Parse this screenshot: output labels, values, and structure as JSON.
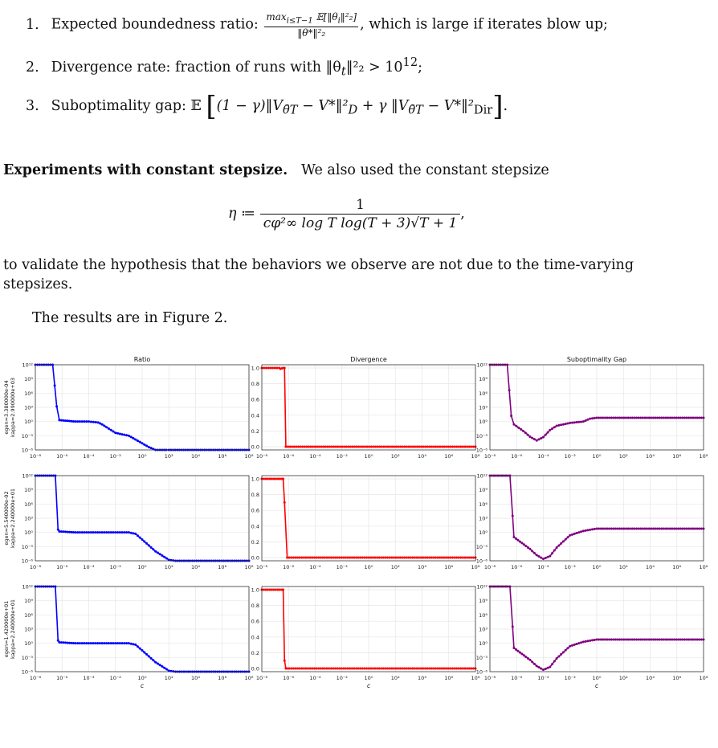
{
  "list": [
    {
      "num": "1.",
      "text": "Expected boundedness ratio:",
      "frac_num": "max",
      "frac_num_sub": "i≤T−1",
      "frac_num_rest": " 𝔼[‖θ",
      "frac_num_sub2": "i",
      "frac_num_end": "‖²₂]",
      "frac_den": "‖θ*‖²₂",
      "tail": ", which is large if iterates blow up;"
    },
    {
      "num": "2.",
      "text": "Divergence rate: fraction of runs with ‖θ",
      "sub": "t",
      "mid": "‖²₂ > 10",
      "sup": "12",
      "tail": ";"
    },
    {
      "num": "3.",
      "text": "Suboptimality gap: 𝔼",
      "body": "(1 − γ)‖V",
      "sub1": "θ̄T",
      "body2": " − V*‖²",
      "sub2": "D",
      "body3": " + γ ‖V",
      "sub3": "θ̄T",
      "body4": " − V*‖²",
      "sub4": "Dir",
      "tail": "."
    }
  ],
  "para": {
    "heading": "Experiments with constant stepsize.",
    "intro": "We also used the constant stepsize",
    "eq_lhs": "η ≔",
    "eq_num": "1",
    "eq_den": "cφ²∞ log T log(T + 3)√T + 1",
    "eq_tail": ",",
    "line1": "to validate the hypothesis that the behaviors we observe are not due to the time-varying",
    "line2": "stepsizes.",
    "results": "The results are in Figure 2."
  },
  "chart_data": {
    "type": "line",
    "columns": [
      {
        "title": "Ratio",
        "color": "#0000ff",
        "ylog": true,
        "ylim": [
          1e-06,
          1000000000000.0
        ],
        "yticks": [
          "10¹²",
          "10⁹",
          "10⁶",
          "10³",
          "10⁰",
          "10⁻³",
          "10⁻⁶"
        ]
      },
      {
        "title": "Divergence",
        "color": "#ff0000",
        "ylog": false,
        "ylim": [
          0,
          1
        ],
        "yticks": [
          "1.0",
          "0.8",
          "0.6",
          "0.4",
          "0.2",
          "0.0"
        ]
      },
      {
        "title": "Suboptimality Gap",
        "color": "#800080",
        "ylog": true,
        "ylim": [
          1e-06,
          1000000000000.0
        ],
        "yticks": [
          "10¹²",
          "10⁹",
          "10⁶",
          "10³",
          "10⁰",
          "10⁻³",
          "10⁻⁶"
        ]
      }
    ],
    "rows": [
      {
        "ylabel1": "egen=3.380000e-04",
        "ylabel2": "kappa=2.990000e+03"
      },
      {
        "ylabel1": "egen=5.540000e-02",
        "ylabel2": "kappa=2.240000e+01"
      },
      {
        "ylabel1": "egen=1.420000e+01",
        "ylabel2": "kappa=2.240000e+01"
      }
    ],
    "xlabel": "c",
    "xlim_log10": [
      -8,
      8
    ],
    "xticks": [
      "10⁻⁸",
      "10⁻⁶",
      "10⁻⁴",
      "10⁻²",
      "10⁰",
      "10²",
      "10⁴",
      "10⁶",
      "10⁸"
    ],
    "series": [
      [
        {
          "name": "",
          "log10_x": [
            -8,
            -6.7,
            -6.4,
            -6.2,
            -5,
            -4,
            -3.3,
            -3,
            -2.5,
            -2,
            -1.5,
            -1,
            0,
            0.5,
            1,
            1.5,
            1.8,
            2,
            8
          ],
          "log10_y": [
            12,
            12,
            3.2,
            0.3,
            0,
            0,
            -0.2,
            -0.6,
            -1.5,
            -2.4,
            -2.7,
            -3,
            -4.6,
            -5.4,
            -6,
            -6,
            -6,
            -6,
            -6
          ]
        },
        {
          "name": "",
          "log10_x": [
            -8,
            -6.7,
            -6.6,
            -6.5,
            -6.4,
            -6.3,
            -6.2,
            8
          ],
          "log10_y": [
            1,
            1,
            0.99,
            0.995,
            1,
            1,
            0,
            0
          ]
        },
        {
          "name": "",
          "log10_x": [
            -8,
            -6.7,
            -6.4,
            -6.2,
            -5.5,
            -5,
            -4.5,
            -4,
            -3.5,
            -3,
            -2,
            -1,
            -0.5,
            0,
            8
          ],
          "log10_y": [
            12,
            12,
            1.2,
            -0.6,
            -2,
            -3.2,
            -4,
            -3.3,
            -1.8,
            -0.9,
            -0.3,
            0,
            0.6,
            0.8,
            0.8
          ]
        }
      ],
      [
        {
          "name": "",
          "log10_x": [
            -8,
            -6.5,
            -6.3,
            -6.2,
            -5,
            -4,
            -3,
            -2,
            -1,
            -0.5,
            0,
            1,
            2,
            2.5,
            8
          ],
          "log10_y": [
            12,
            12,
            0.6,
            0.2,
            0,
            0,
            0,
            0,
            0,
            -0.3,
            -1.5,
            -4,
            -5.8,
            -6,
            -6
          ]
        },
        {
          "name": "",
          "log10_x": [
            -8,
            -6.5,
            -6.4,
            -6.3,
            -6.1,
            8
          ],
          "log10_y": [
            1,
            1,
            1,
            0.7,
            0,
            0
          ]
        },
        {
          "name": "",
          "log10_x": [
            -8,
            -6.5,
            -6.3,
            -6.2,
            -5,
            -4.5,
            -4,
            -3.5,
            -3,
            -2,
            -1,
            0,
            8
          ],
          "log10_y": [
            12,
            12,
            3.5,
            -1,
            -3.5,
            -4.8,
            -5.6,
            -5,
            -3.2,
            -0.6,
            0.3,
            0.8,
            0.8
          ]
        }
      ],
      [
        {
          "name": "",
          "log10_x": [
            -8,
            -6.5,
            -6.3,
            -6.2,
            -5,
            -4,
            -3,
            -2,
            -1,
            -0.5,
            0,
            1,
            2,
            2.5,
            8
          ],
          "log10_y": [
            12,
            12,
            0.6,
            0.2,
            0,
            0,
            0,
            0,
            0,
            -0.3,
            -1.5,
            -4,
            -5.8,
            -6,
            -6
          ]
        },
        {
          "name": "",
          "log10_x": [
            -8,
            -6.5,
            -6.4,
            -6.3,
            -6.2,
            -6.1,
            8
          ],
          "log10_y": [
            1,
            1,
            1,
            0.1,
            0,
            0,
            0
          ]
        },
        {
          "name": "",
          "log10_x": [
            -8,
            -6.5,
            -6.3,
            -6.2,
            -5,
            -4.5,
            -4,
            -3.5,
            -3,
            -2,
            -1,
            0,
            8
          ],
          "log10_y": [
            12,
            12,
            3.5,
            -1,
            -3.5,
            -4.8,
            -5.6,
            -5,
            -3.2,
            -0.6,
            0.3,
            0.8,
            0.8
          ]
        }
      ]
    ]
  }
}
